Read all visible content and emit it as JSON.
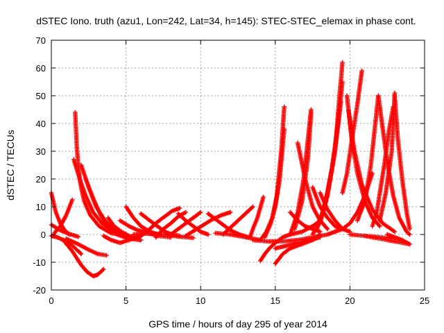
{
  "chart_data": {
    "type": "scatter",
    "title": "dSTEC Iono. truth (azu1, Lon=242, Lat=34, h=145): STEC-STEC_elemax in phase cont.",
    "xlabel": "GPS time / hours of day 295 of year 2014",
    "ylabel": "dSTEC  / TECUs",
    "xlim": [
      0,
      25
    ],
    "ylim": [
      -20,
      70
    ],
    "xticks": [
      0,
      5,
      10,
      15,
      20,
      25
    ],
    "yticks": [
      -20,
      -10,
      0,
      10,
      20,
      30,
      40,
      50,
      60,
      70
    ],
    "xtick_labels": [
      "0",
      "5",
      "10",
      "15",
      "20",
      "25"
    ],
    "ytick_labels": [
      "-20",
      "-10",
      "0",
      "10",
      "20",
      "30",
      "40",
      "50",
      "60",
      "70"
    ],
    "grid": true,
    "legend": "none",
    "marker": "plus",
    "color": "#ff0000",
    "series": [
      {
        "x": [
          0.0,
          0.3,
          0.6,
          0.9,
          1.2
        ],
        "y": [
          15,
          8,
          4,
          1.5,
          0
        ]
      },
      {
        "x": [
          0.0,
          0.4,
          0.8,
          1.2,
          1.5,
          1.8,
          2.0
        ],
        "y": [
          -0.5,
          -1,
          -2,
          -3,
          -4.5,
          -6,
          -7
        ]
      },
      {
        "x": [
          0.0,
          0.6,
          1.2,
          1.8
        ],
        "y": [
          3.5,
          1.5,
          0.2,
          -0.8
        ]
      },
      {
        "x": [
          0.2,
          0.6,
          1.0,
          1.4
        ],
        "y": [
          0.5,
          3,
          7,
          12.5
        ]
      },
      {
        "x": [
          0.8,
          1.4,
          2.0,
          2.4,
          2.8,
          3.1,
          3.5
        ],
        "y": [
          -2,
          -6,
          -11,
          -13.5,
          -15,
          -14.5,
          -12.5
        ]
      },
      {
        "x": [
          1.0,
          1.8,
          2.5,
          3.1,
          3.7
        ],
        "y": [
          -1.5,
          -3.5,
          -5.5,
          -7,
          -7.5
        ]
      },
      {
        "x": [
          1.6,
          1.65,
          1.7,
          1.8,
          1.95,
          2.2,
          2.6,
          3.2,
          4.0,
          5.0
        ],
        "y": [
          44,
          38,
          32,
          25,
          18,
          12,
          7,
          3,
          0.5,
          -0.5
        ]
      },
      {
        "x": [
          1.5,
          1.9,
          2.3,
          2.8,
          3.4,
          4.2,
          5.0
        ],
        "y": [
          27,
          20,
          14,
          8,
          4,
          1,
          -0.5
        ]
      },
      {
        "x": [
          2.0,
          2.5,
          3.0,
          3.6,
          4.3,
          5.0,
          6.0
        ],
        "y": [
          25,
          17,
          10,
          5,
          1,
          -1,
          -2
        ]
      },
      {
        "x": [
          2.3,
          2.8,
          3.3,
          3.8,
          4.4,
          5.2,
          6.0
        ],
        "y": [
          20,
          13,
          7,
          3,
          0,
          -1.5,
          -2
        ]
      },
      {
        "x": [
          3.5,
          4.0,
          4.6,
          5.2,
          6.0
        ],
        "y": [
          -0.5,
          -2,
          -3,
          -2,
          -0.5
        ]
      },
      {
        "x": [
          3.8,
          4.2,
          4.7,
          5.2,
          5.7
        ],
        "y": [
          6,
          3,
          1,
          -0.5,
          -1.5
        ]
      },
      {
        "x": [
          4.6,
          5.2,
          5.8,
          6.5,
          7.2,
          8.0
        ],
        "y": [
          5,
          3,
          1.5,
          0.5,
          -0.5,
          -1
        ]
      },
      {
        "x": [
          5.0,
          5.5,
          6.0,
          6.6,
          7.2
        ],
        "y": [
          10,
          6,
          3,
          1,
          0
        ]
      },
      {
        "x": [
          5.5,
          6.2,
          7.0,
          7.8,
          8.6,
          9.5
        ],
        "y": [
          0,
          0.3,
          0.2,
          -0.2,
          -0.8,
          -1.2
        ]
      },
      {
        "x": [
          6.0,
          6.6,
          7.1,
          7.6,
          8.1,
          8.6
        ],
        "y": [
          -0.5,
          2,
          4.5,
          6.5,
          8.5,
          9.5
        ]
      },
      {
        "x": [
          6.0,
          6.6,
          7.1,
          7.6,
          8.1,
          8.6
        ],
        "y": [
          7.5,
          5,
          3,
          1,
          0,
          -0.5
        ]
      },
      {
        "x": [
          7.0,
          7.5,
          8.0,
          8.5,
          9.0
        ],
        "y": [
          -1,
          2,
          4,
          6.5,
          8
        ]
      },
      {
        "x": [
          8.0,
          8.5,
          9.0,
          9.5,
          10.0
        ],
        "y": [
          0,
          2,
          4,
          6,
          8
        ]
      },
      {
        "x": [
          8.5,
          9.0,
          9.5,
          10.0,
          10.5
        ],
        "y": [
          7.5,
          5,
          3,
          1,
          0
        ]
      },
      {
        "x": [
          9.0,
          9.6,
          10.2,
          10.8,
          11.4,
          12.0
        ],
        "y": [
          -0.5,
          1.5,
          3.5,
          5.5,
          7,
          8
        ]
      },
      {
        "x": [
          10.5,
          11.0,
          11.5,
          12.0,
          12.6,
          13.2
        ],
        "y": [
          7.5,
          5.5,
          3.5,
          1.5,
          0,
          -1
        ]
      },
      {
        "x": [
          11.5,
          12.0,
          12.5,
          13.0,
          13.5
        ],
        "y": [
          0,
          2.5,
          5,
          7.5,
          10
        ]
      },
      {
        "x": [
          11.0,
          12.0,
          13.0,
          14.0
        ],
        "y": [
          0.5,
          0,
          -1,
          -2
        ]
      },
      {
        "x": [
          13.3,
          13.5,
          13.8,
          14.2
        ],
        "y": [
          -1,
          2,
          6,
          13.5
        ]
      },
      {
        "x": [
          14.0,
          14.4,
          14.8,
          15.1,
          15.4,
          15.6
        ],
        "y": [
          -2,
          1,
          6,
          14,
          30,
          46
        ]
      },
      {
        "x": [
          14.3,
          14.7,
          15.0,
          15.3,
          15.6
        ],
        "y": [
          -1,
          4,
          10,
          20,
          38
        ]
      },
      {
        "x": [
          13.5,
          14.5,
          15.5,
          16.5,
          17.5,
          18.5,
          19.0
        ],
        "y": [
          -2,
          -2.5,
          -2.5,
          -2,
          -1,
          0,
          1
        ]
      },
      {
        "x": [
          14.0,
          14.3,
          14.6,
          15.0,
          15.5,
          16.0,
          16.8,
          17.5,
          18.0
        ],
        "y": [
          -9.5,
          -7,
          -5,
          -3,
          -1,
          0,
          1,
          3,
          5
        ]
      },
      {
        "x": [
          15.0,
          15.5,
          16.0,
          16.5,
          17.0,
          17.5,
          18.0
        ],
        "y": [
          -10.5,
          -7,
          -5,
          -4,
          -3,
          -2,
          0
        ]
      },
      {
        "x": [
          15.0,
          15.8,
          16.6,
          17.4,
          18.0
        ],
        "y": [
          -5,
          -4,
          -3,
          -2,
          -1
        ]
      },
      {
        "x": [
          16.0,
          16.5,
          16.9,
          17.2,
          17.4
        ],
        "y": [
          0,
          8,
          20,
          35,
          45
        ]
      },
      {
        "x": [
          16.3,
          16.8,
          17.2,
          17.4
        ],
        "y": [
          2,
          12,
          28,
          44
        ]
      },
      {
        "x": [
          16.5,
          17.0,
          17.5,
          18.0,
          18.5
        ],
        "y": [
          33,
          20,
          10,
          5,
          2
        ]
      },
      {
        "x": [
          16.0,
          16.5,
          17.0,
          17.5,
          18.0
        ],
        "y": [
          8,
          5,
          3,
          2,
          1
        ]
      },
      {
        "x": [
          17.5,
          18.0,
          18.5,
          19.0,
          19.3,
          19.5
        ],
        "y": [
          0,
          5,
          15,
          30,
          50,
          62
        ]
      },
      {
        "x": [
          17.8,
          18.3,
          18.8,
          19.2,
          19.5
        ],
        "y": [
          2,
          10,
          24,
          40,
          55
        ]
      },
      {
        "x": [
          18.0,
          18.5,
          19.0,
          19.4
        ],
        "y": [
          4,
          14,
          30,
          48
        ]
      },
      {
        "x": [
          17.5,
          18.0,
          18.5,
          19.0,
          19.5
        ],
        "y": [
          17,
          10,
          6,
          3,
          2
        ]
      },
      {
        "x": [
          18.0,
          18.5,
          19.0,
          19.5,
          20.0
        ],
        "y": [
          15,
          9,
          5,
          2,
          1
        ]
      },
      {
        "x": [
          19.8,
          20.1,
          20.5,
          21.0,
          21.5,
          22.0
        ],
        "y": [
          50,
          35,
          22,
          12,
          6,
          3
        ]
      },
      {
        "x": [
          19.5,
          19.8,
          20.1,
          20.5,
          20.8
        ],
        "y": [
          15,
          22,
          33,
          47,
          59
        ]
      },
      {
        "x": [
          19.9,
          20.3,
          20.8,
          21.5,
          22.2,
          23.0
        ],
        "y": [
          45,
          30,
          18,
          9,
          4,
          1
        ]
      },
      {
        "x": [
          19.0,
          19.5,
          20.0,
          20.5,
          21.0,
          21.5
        ],
        "y": [
          1,
          2,
          4,
          8,
          14,
          22
        ]
      },
      {
        "x": [
          20.5,
          21.0,
          21.4,
          21.7,
          21.9
        ],
        "y": [
          5,
          12,
          25,
          40,
          50
        ]
      },
      {
        "x": [
          21.9,
          22.2,
          22.5,
          22.9,
          23.3,
          23.8,
          24.0
        ],
        "y": [
          50,
          38,
          26,
          14,
          6,
          1,
          0
        ]
      },
      {
        "x": [
          21.5,
          21.8,
          22.0,
          22.3,
          22.6,
          22.9
        ],
        "y": [
          3,
          8,
          15,
          25,
          37,
          46
        ]
      },
      {
        "x": [
          22.0,
          22.4,
          22.8,
          23.0
        ],
        "y": [
          5,
          15,
          30,
          51
        ]
      },
      {
        "x": [
          23.0,
          23.2,
          23.5,
          23.8,
          24.0
        ],
        "y": [
          50,
          35,
          20,
          8,
          2
        ]
      },
      {
        "x": [
          21.0,
          22.0,
          23.0,
          24.0
        ],
        "y": [
          -0.5,
          -1.5,
          -2.5,
          -3.5
        ]
      },
      {
        "x": [
          20.0,
          21.0,
          22.0,
          23.0
        ],
        "y": [
          0,
          -0.5,
          -1,
          -1.5
        ]
      },
      {
        "x": [
          22.5,
          23.0,
          23.5,
          24.0
        ],
        "y": [
          0,
          -1,
          -2,
          -3.5
        ]
      }
    ]
  }
}
